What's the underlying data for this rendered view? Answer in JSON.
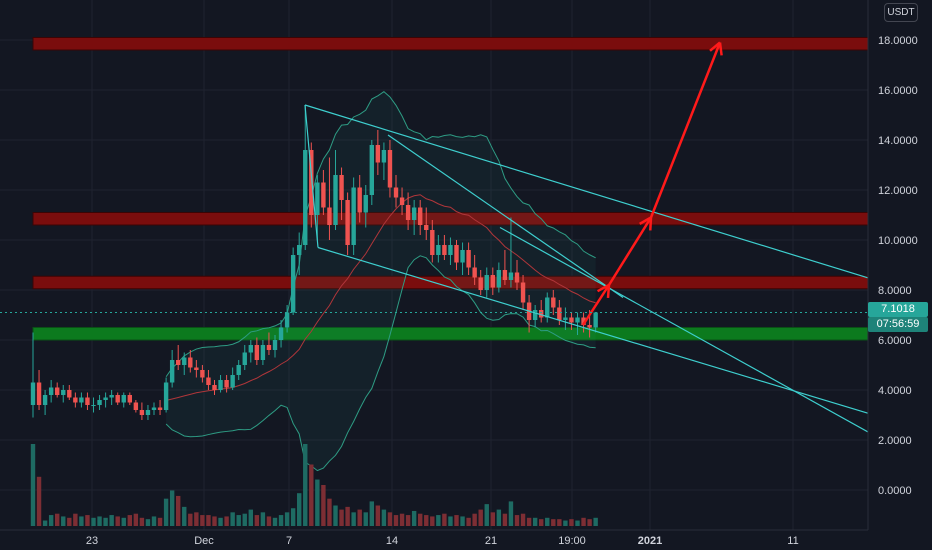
{
  "currency_label": "USDT",
  "last_price": "7.1018",
  "countdown": "07:56:59",
  "colors": {
    "background": "#131722",
    "bull": "#26a69a",
    "bear": "#ef5350",
    "vol_bull": "#1e6b63",
    "vol_bear": "#7d2e34",
    "trendline": "#3ecfcf",
    "zone_red": "#7a0d0d",
    "zone_green": "#0c7a1e",
    "arrow": "#ff1a1a",
    "bb_band": "#2e9c84",
    "bb_basis": "#b0363a"
  },
  "chart_data": {
    "type": "candlestick",
    "y_axis": {
      "ticks": [
        "0.0000",
        "2.0000",
        "4.0000",
        "6.0000",
        "8.0000",
        "10.0000",
        "12.0000",
        "14.0000",
        "16.0000",
        "18.0000"
      ],
      "range": [
        -1.6,
        19.6
      ]
    },
    "x_axis": {
      "ticks": [
        "23",
        "Dec",
        "7",
        "14",
        "21",
        "19:00",
        "2021",
        "11"
      ]
    },
    "horizontal_zones": [
      {
        "color": "red",
        "low": 17.6,
        "high": 18.1
      },
      {
        "color": "red",
        "low": 10.6,
        "high": 11.1
      },
      {
        "color": "red",
        "low": 8.05,
        "high": 8.55
      },
      {
        "color": "green",
        "low": 6.0,
        "high": 6.5
      }
    ],
    "candles_ohlc": [
      [
        3.4,
        6.3,
        2.9,
        4.3
      ],
      [
        4.3,
        4.8,
        3.2,
        3.4
      ],
      [
        3.4,
        4.0,
        3.0,
        3.8
      ],
      [
        3.8,
        4.4,
        3.5,
        4.1
      ],
      [
        4.1,
        4.3,
        3.7,
        3.8
      ],
      [
        3.8,
        4.2,
        3.5,
        4.0
      ],
      [
        4.0,
        4.2,
        3.6,
        3.7
      ],
      [
        3.7,
        3.9,
        3.3,
        3.5
      ],
      [
        3.5,
        3.9,
        3.3,
        3.7
      ],
      [
        3.7,
        3.9,
        3.2,
        3.4
      ],
      [
        3.4,
        3.7,
        3.1,
        3.4
      ],
      [
        3.4,
        3.8,
        3.2,
        3.6
      ],
      [
        3.6,
        3.9,
        3.3,
        3.7
      ],
      [
        3.7,
        4.0,
        3.4,
        3.8
      ],
      [
        3.8,
        3.9,
        3.4,
        3.5
      ],
      [
        3.5,
        3.9,
        3.3,
        3.8
      ],
      [
        3.8,
        3.9,
        3.4,
        3.5
      ],
      [
        3.5,
        3.6,
        3.1,
        3.2
      ],
      [
        3.2,
        3.5,
        2.8,
        3.0
      ],
      [
        3.0,
        3.4,
        2.8,
        3.2
      ],
      [
        3.2,
        3.5,
        3.0,
        3.3
      ],
      [
        3.3,
        3.6,
        3.0,
        3.2
      ],
      [
        3.2,
        4.5,
        3.1,
        4.3
      ],
      [
        4.3,
        5.6,
        4.1,
        5.2
      ],
      [
        5.2,
        5.8,
        4.8,
        5.0
      ],
      [
        5.0,
        5.5,
        4.6,
        5.3
      ],
      [
        5.3,
        5.6,
        4.7,
        4.9
      ],
      [
        4.9,
        5.2,
        4.5,
        4.8
      ],
      [
        4.8,
        5.0,
        4.3,
        4.5
      ],
      [
        4.5,
        4.8,
        4.0,
        4.2
      ],
      [
        4.2,
        4.4,
        3.8,
        4.0
      ],
      [
        4.0,
        4.6,
        3.9,
        4.4
      ],
      [
        4.4,
        4.6,
        3.9,
        4.1
      ],
      [
        4.1,
        4.9,
        4.0,
        4.6
      ],
      [
        4.6,
        5.2,
        4.4,
        5.0
      ],
      [
        5.0,
        5.8,
        4.8,
        5.5
      ],
      [
        5.5,
        6.0,
        5.1,
        5.8
      ],
      [
        5.8,
        6.1,
        5.0,
        5.2
      ],
      [
        5.2,
        6.0,
        5.0,
        5.8
      ],
      [
        5.8,
        6.3,
        5.4,
        5.6
      ],
      [
        5.6,
        6.2,
        5.3,
        6.0
      ],
      [
        6.0,
        6.8,
        5.7,
        6.5
      ],
      [
        6.5,
        7.4,
        6.3,
        7.1
      ],
      [
        7.1,
        9.7,
        7.0,
        9.4
      ],
      [
        9.4,
        10.3,
        8.6,
        9.8
      ],
      [
        9.8,
        15.4,
        9.6,
        13.6
      ],
      [
        13.6,
        13.9,
        10.5,
        11.0
      ],
      [
        11.0,
        12.6,
        10.0,
        12.3
      ],
      [
        12.3,
        12.8,
        11.0,
        11.3
      ],
      [
        11.3,
        13.3,
        10.0,
        10.6
      ],
      [
        10.6,
        13.6,
        10.4,
        12.6
      ],
      [
        12.6,
        12.9,
        10.8,
        11.6
      ],
      [
        11.6,
        11.9,
        9.4,
        9.8
      ],
      [
        9.8,
        12.5,
        9.4,
        12.1
      ],
      [
        12.1,
        12.6,
        10.7,
        11.1
      ],
      [
        11.1,
        12.2,
        10.5,
        11.8
      ],
      [
        11.8,
        14.0,
        11.4,
        13.8
      ],
      [
        13.8,
        14.4,
        12.6,
        13.1
      ],
      [
        13.1,
        13.9,
        12.4,
        13.6
      ],
      [
        13.6,
        14.0,
        11.7,
        12.1
      ],
      [
        12.1,
        12.6,
        11.3,
        11.7
      ],
      [
        11.7,
        12.1,
        11.0,
        11.4
      ],
      [
        11.4,
        11.9,
        10.4,
        10.8
      ],
      [
        10.8,
        11.6,
        10.2,
        11.3
      ],
      [
        11.3,
        11.6,
        10.2,
        10.6
      ],
      [
        10.6,
        11.3,
        10.0,
        10.4
      ],
      [
        10.4,
        10.8,
        9.1,
        9.4
      ],
      [
        9.4,
        10.2,
        9.1,
        9.8
      ],
      [
        9.8,
        10.2,
        9.2,
        9.4
      ],
      [
        9.4,
        10.1,
        9.0,
        9.8
      ],
      [
        9.8,
        10.0,
        8.8,
        9.1
      ],
      [
        9.1,
        9.9,
        8.6,
        9.6
      ],
      [
        9.6,
        9.9,
        8.6,
        8.9
      ],
      [
        8.9,
        9.4,
        8.2,
        8.5
      ],
      [
        8.5,
        8.8,
        7.8,
        8.0
      ],
      [
        8.0,
        8.9,
        7.7,
        8.6
      ],
      [
        8.6,
        8.9,
        7.8,
        8.1
      ],
      [
        8.1,
        9.1,
        7.9,
        8.8
      ],
      [
        8.8,
        9.6,
        8.2,
        8.4
      ],
      [
        8.4,
        10.9,
        8.1,
        8.7
      ],
      [
        8.7,
        9.2,
        8.0,
        8.3
      ],
      [
        8.3,
        8.6,
        7.2,
        7.5
      ],
      [
        7.5,
        7.8,
        6.3,
        6.8
      ],
      [
        6.8,
        7.4,
        6.5,
        7.2
      ],
      [
        7.2,
        7.6,
        6.7,
        6.9
      ],
      [
        6.9,
        7.9,
        6.7,
        7.7
      ],
      [
        7.7,
        8.0,
        7.0,
        7.3
      ],
      [
        7.3,
        7.6,
        6.6,
        6.8
      ],
      [
        6.8,
        7.3,
        6.4,
        6.9
      ],
      [
        6.9,
        7.1,
        6.4,
        6.7
      ],
      [
        6.7,
        7.1,
        6.2,
        6.9
      ],
      [
        6.9,
        7.1,
        6.3,
        6.6
      ],
      [
        6.6,
        7.2,
        6.1,
        6.5
      ],
      [
        6.5,
        7.1,
        6.3,
        7.1
      ]
    ],
    "volume": [
      60,
      36,
      4,
      8,
      9,
      7,
      6,
      9,
      7,
      8,
      6,
      7,
      6,
      8,
      7,
      6,
      8,
      9,
      6,
      5,
      7,
      6,
      20,
      26,
      22,
      14,
      9,
      10,
      8,
      8,
      7,
      6,
      7,
      10,
      8,
      9,
      12,
      8,
      10,
      7,
      6,
      8,
      10,
      13,
      24,
      60,
      45,
      34,
      30,
      20,
      15,
      12,
      14,
      10,
      12,
      10,
      18,
      15,
      12,
      10,
      8,
      9,
      8,
      11,
      9,
      8,
      7,
      8,
      9,
      7,
      8,
      7,
      6,
      9,
      12,
      16,
      10,
      12,
      9,
      18,
      8,
      9,
      6,
      6,
      5,
      6,
      5,
      5,
      4,
      5,
      4,
      6,
      5,
      6
    ]
  }
}
